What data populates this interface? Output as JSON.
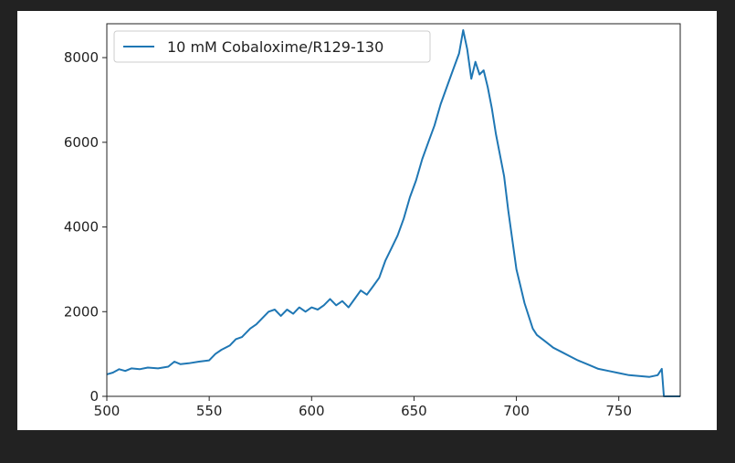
{
  "colors": {
    "page_background": "#222222",
    "figure_background": "#ffffff",
    "series": "#1f77b4",
    "axes": "#222222"
  },
  "chart_data": {
    "type": "line",
    "title": "",
    "xlabel": "",
    "ylabel": "",
    "xlim": [
      500,
      780
    ],
    "ylim": [
      0,
      8800
    ],
    "x_ticks": [
      500,
      550,
      600,
      650,
      700,
      750
    ],
    "y_ticks": [
      0,
      2000,
      4000,
      6000,
      8000
    ],
    "grid": false,
    "legend": {
      "position": "top-left",
      "show": true
    },
    "series": [
      {
        "name": "10 mM Cobaloxime/R129-130",
        "color": "#1f77b4",
        "points": [
          [
            500,
            520
          ],
          [
            503,
            560
          ],
          [
            506,
            640
          ],
          [
            509,
            600
          ],
          [
            512,
            660
          ],
          [
            516,
            640
          ],
          [
            520,
            680
          ],
          [
            525,
            660
          ],
          [
            530,
            700
          ],
          [
            533,
            820
          ],
          [
            536,
            760
          ],
          [
            540,
            780
          ],
          [
            545,
            820
          ],
          [
            550,
            850
          ],
          [
            553,
            1000
          ],
          [
            556,
            1100
          ],
          [
            560,
            1200
          ],
          [
            563,
            1350
          ],
          [
            566,
            1400
          ],
          [
            570,
            1600
          ],
          [
            573,
            1700
          ],
          [
            576,
            1850
          ],
          [
            579,
            2000
          ],
          [
            582,
            2050
          ],
          [
            585,
            1900
          ],
          [
            588,
            2050
          ],
          [
            591,
            1950
          ],
          [
            594,
            2100
          ],
          [
            597,
            2000
          ],
          [
            600,
            2100
          ],
          [
            603,
            2050
          ],
          [
            606,
            2150
          ],
          [
            609,
            2300
          ],
          [
            612,
            2150
          ],
          [
            615,
            2250
          ],
          [
            618,
            2100
          ],
          [
            621,
            2300
          ],
          [
            624,
            2500
          ],
          [
            627,
            2400
          ],
          [
            630,
            2600
          ],
          [
            633,
            2800
          ],
          [
            636,
            3200
          ],
          [
            639,
            3500
          ],
          [
            642,
            3800
          ],
          [
            645,
            4200
          ],
          [
            648,
            4700
          ],
          [
            651,
            5100
          ],
          [
            654,
            5600
          ],
          [
            657,
            6000
          ],
          [
            660,
            6400
          ],
          [
            663,
            6900
          ],
          [
            666,
            7300
          ],
          [
            669,
            7700
          ],
          [
            672,
            8100
          ],
          [
            674,
            8650
          ],
          [
            676,
            8200
          ],
          [
            678,
            7500
          ],
          [
            680,
            7900
          ],
          [
            682,
            7600
          ],
          [
            684,
            7700
          ],
          [
            686,
            7300
          ],
          [
            688,
            6800
          ],
          [
            690,
            6200
          ],
          [
            692,
            5700
          ],
          [
            694,
            5200
          ],
          [
            696,
            4400
          ],
          [
            698,
            3700
          ],
          [
            700,
            3000
          ],
          [
            702,
            2600
          ],
          [
            704,
            2200
          ],
          [
            706,
            1900
          ],
          [
            708,
            1600
          ],
          [
            710,
            1450
          ],
          [
            714,
            1300
          ],
          [
            718,
            1150
          ],
          [
            722,
            1050
          ],
          [
            726,
            950
          ],
          [
            730,
            850
          ],
          [
            735,
            750
          ],
          [
            740,
            650
          ],
          [
            745,
            600
          ],
          [
            750,
            550
          ],
          [
            755,
            500
          ],
          [
            760,
            480
          ],
          [
            765,
            460
          ],
          [
            769,
            500
          ],
          [
            771,
            650
          ],
          [
            772,
            0
          ],
          [
            780,
            0
          ]
        ]
      }
    ]
  }
}
